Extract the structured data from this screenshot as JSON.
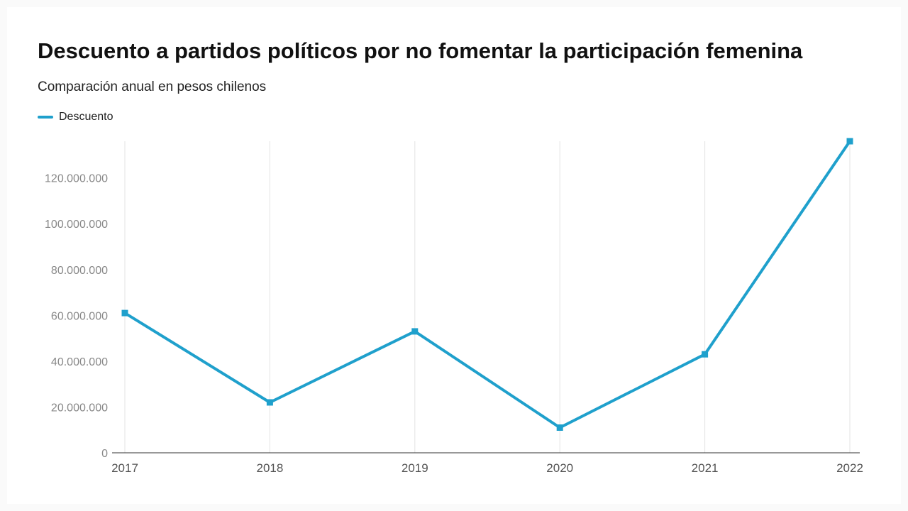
{
  "title": "Descuento a partidos políticos por no fomentar la participación femenina",
  "subtitle": "Comparación anual en pesos chilenos",
  "legend": {
    "label": "Descuento"
  },
  "colors": {
    "series": "#1fa0cc",
    "grid": "#e3e3e3",
    "axis": "#333333"
  },
  "chart_data": {
    "type": "line",
    "title": "Descuento a partidos políticos por no fomentar la participación femenina",
    "subtitle": "Comparación anual en pesos chilenos",
    "xlabel": "",
    "ylabel": "",
    "categories": [
      "2017",
      "2018",
      "2019",
      "2020",
      "2021",
      "2022"
    ],
    "series": [
      {
        "name": "Descuento",
        "values": [
          61000000,
          22000000,
          53000000,
          11000000,
          43000000,
          136000000
        ]
      }
    ],
    "ylim": [
      0,
      136000000
    ],
    "yticks": [
      0,
      20000000,
      40000000,
      60000000,
      80000000,
      100000000,
      120000000
    ],
    "ytick_labels": [
      "0",
      "20.000.000",
      "40.000.000",
      "60.000.000",
      "80.000.000",
      "100.000.000",
      "120.000.000"
    ],
    "grid": "vertical",
    "legend_position": "top-left",
    "markers": "square"
  }
}
